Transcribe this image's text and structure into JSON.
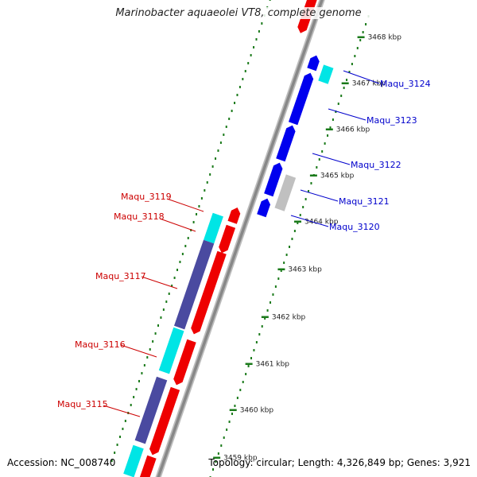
{
  "title": "Marinobacter aquaeolei VT8, complete genome",
  "footer": {
    "accession": "Accession: NC_008740",
    "summary": "Topology: circular; Length: 4,326,849 bp; Genes: 3,921"
  },
  "ticks": [
    {
      "label": "3459 kbp",
      "kbp": 3459
    },
    {
      "label": "3460 kbp",
      "kbp": 3460
    },
    {
      "label": "3461 kbp",
      "kbp": 3461
    },
    {
      "label": "3462 kbp",
      "kbp": 3462
    },
    {
      "label": "3463 kbp",
      "kbp": 3463
    },
    {
      "label": "3464 kbp",
      "kbp": 3464
    },
    {
      "label": "3465 kbp",
      "kbp": 3465
    },
    {
      "label": "3466 kbp",
      "kbp": 3466
    },
    {
      "label": "3467 kbp",
      "kbp": 3467
    },
    {
      "label": "3468 kbp",
      "kbp": 3468
    }
  ],
  "gene_labels": [
    {
      "text": "Maqu_3124",
      "strand": "plus"
    },
    {
      "text": "Maqu_3123",
      "strand": "plus"
    },
    {
      "text": "Maqu_3122",
      "strand": "plus"
    },
    {
      "text": "Maqu_3121",
      "strand": "plus"
    },
    {
      "text": "Maqu_3120",
      "strand": "plus"
    },
    {
      "text": "Maqu_3119",
      "strand": "minus"
    },
    {
      "text": "Maqu_3118",
      "strand": "minus"
    },
    {
      "text": "Maqu_3117",
      "strand": "minus"
    },
    {
      "text": "Maqu_3116",
      "strand": "minus"
    },
    {
      "text": "Maqu_3115",
      "strand": "minus"
    }
  ],
  "colors": {
    "plus_cds": "#0000ee",
    "minus_cds": "#ee0000",
    "trna_like": "#00e5e5",
    "minus_product": "#4a4aa0",
    "pseudo": "#c0c0c0",
    "tick": "#1a7a1a",
    "backbone": "#888888",
    "plus_label": "#0000cc",
    "minus_label": "#cc0000"
  }
}
